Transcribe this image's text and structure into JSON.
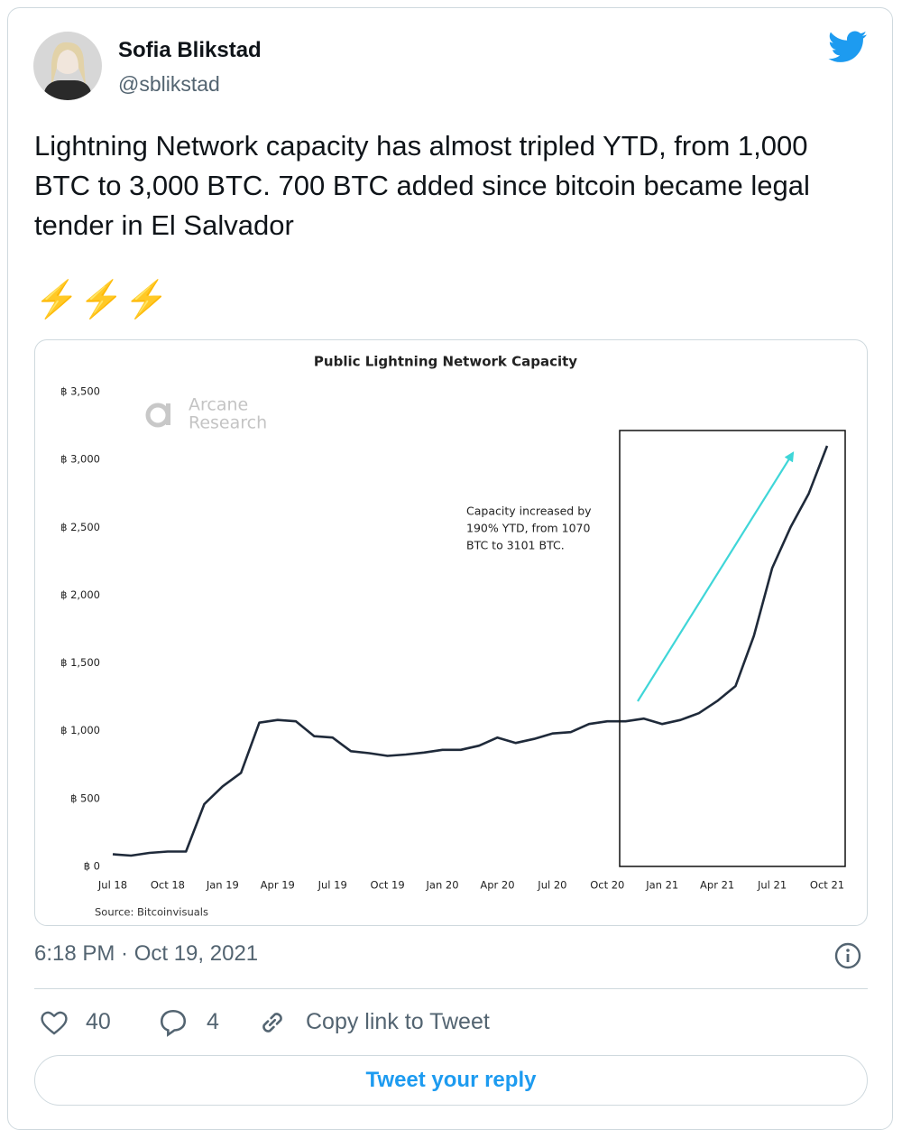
{
  "tweet": {
    "name": "Sofia Blikstad",
    "handle": "@sblikstad",
    "text": "Lightning Network capacity has almost tripled YTD, from 1,000 BTC to 3,000 BTC. 700 BTC added since bitcoin became legal tender in El Salvador",
    "emoji": "⚡⚡⚡",
    "timestamp": "6:18 PM · Oct 19, 2021",
    "likes": "40",
    "replies": "4",
    "copy_link": "Copy link to Tweet",
    "reply_button": "Tweet your reply"
  },
  "chart_data": {
    "type": "line",
    "title": "Public Lightning Network Capacity",
    "watermark": [
      "Arcane",
      "Research"
    ],
    "source": "Source: Bitcoinvisuals",
    "annotation": [
      "Capacity increased by",
      "190% YTD, from 1070",
      "BTC to 3101 BTC."
    ],
    "x": [
      "2018-07",
      "2018-08",
      "2018-09",
      "2018-10",
      "2018-11",
      "2018-12",
      "2019-01",
      "2019-02",
      "2019-03",
      "2019-04",
      "2019-05",
      "2019-06",
      "2019-07",
      "2019-08",
      "2019-09",
      "2019-10",
      "2019-11",
      "2019-12",
      "2020-01",
      "2020-02",
      "2020-03",
      "2020-04",
      "2020-05",
      "2020-06",
      "2020-07",
      "2020-08",
      "2020-09",
      "2020-10",
      "2020-11",
      "2020-12",
      "2021-01",
      "2021-02",
      "2021-03",
      "2021-04",
      "2021-05",
      "2021-06",
      "2021-07",
      "2021-08",
      "2021-09",
      "2021-10"
    ],
    "series": [
      {
        "name": "Capacity",
        "color": "#1f2a3a",
        "values": [
          90,
          80,
          100,
          110,
          110,
          460,
          590,
          690,
          1060,
          1080,
          1070,
          960,
          950,
          850,
          835,
          815,
          825,
          840,
          860,
          860,
          890,
          950,
          910,
          940,
          980,
          990,
          1050,
          1070,
          1070,
          1090,
          1050,
          1080,
          1130,
          1220,
          1330,
          1700,
          2200,
          2500,
          2750,
          3101
        ]
      }
    ],
    "xlim": [
      "2018-07",
      "2021-10"
    ],
    "xticks": [
      {
        "value": "2018-07",
        "label": "Jul 18"
      },
      {
        "value": "2018-10",
        "label": "Oct 18"
      },
      {
        "value": "2019-01",
        "label": "Jan 19"
      },
      {
        "value": "2019-04",
        "label": "Apr 19"
      },
      {
        "value": "2019-07",
        "label": "Jul 19"
      },
      {
        "value": "2019-10",
        "label": "Oct 19"
      },
      {
        "value": "2020-01",
        "label": "Jan 20"
      },
      {
        "value": "2020-04",
        "label": "Apr 20"
      },
      {
        "value": "2020-07",
        "label": "Jul 20"
      },
      {
        "value": "2020-10",
        "label": "Oct 20"
      },
      {
        "value": "2021-01",
        "label": "Jan 21"
      },
      {
        "value": "2021-04",
        "label": "Apr 21"
      },
      {
        "value": "2021-07",
        "label": "Jul 21"
      },
      {
        "value": "2021-10",
        "label": "Oct 21"
      }
    ],
    "ylim": [
      0,
      3500
    ],
    "yticks": [
      {
        "value": 0,
        "label": "฿ 0"
      },
      {
        "value": 500,
        "label": "฿ 500"
      },
      {
        "value": 1000,
        "label": "฿ 1,000"
      },
      {
        "value": 1500,
        "label": "฿ 1,500"
      },
      {
        "value": 2000,
        "label": "฿ 2,000"
      },
      {
        "value": 2500,
        "label": "฿ 2,500"
      },
      {
        "value": 3000,
        "label": "฿ 3,000"
      },
      {
        "value": 3500,
        "label": "฿ 3,500"
      }
    ],
    "grid": false
  }
}
